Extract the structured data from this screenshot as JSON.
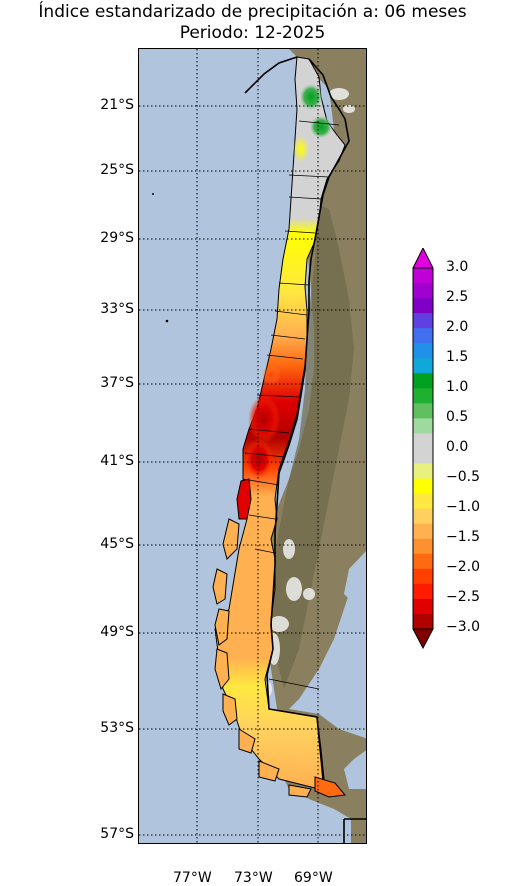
{
  "title": {
    "line1": "Índice estandarizado de precipitación a: 06 meses",
    "line2": "Periodo: 12-2025"
  },
  "map": {
    "region": "Chile",
    "lat_labels": [
      "21°S",
      "25°S",
      "29°S",
      "33°S",
      "37°S",
      "41°S",
      "45°S",
      "49°S",
      "53°S",
      "57°S"
    ],
    "lon_labels": [
      "77°W",
      "73°W",
      "69°W"
    ]
  },
  "colorbar": {
    "ticks": [
      "3.0",
      "2.5",
      "2.0",
      "1.5",
      "1.0",
      "0.5",
      "0.0",
      "−0.5",
      "−1.0",
      "−1.5",
      "−2.0",
      "−2.5",
      "−3.0"
    ],
    "colors_top_to_bottom": [
      "#e000e0",
      "#c000d8",
      "#a000d0",
      "#8000c8",
      "#6040e0",
      "#4070f0",
      "#2090e8",
      "#10a8d8",
      "#00a020",
      "#20b030",
      "#60c060",
      "#a0d8a0",
      "#d3d3d3",
      "#d3d3d3",
      "#e8f080",
      "#ffff00",
      "#ffe840",
      "#ffd060",
      "#ffb050",
      "#ff9030",
      "#ff6a10",
      "#ff4000",
      "#ff1a00",
      "#e00000",
      "#b00000",
      "#800000"
    ],
    "min": -3.0,
    "max": 3.0
  }
}
